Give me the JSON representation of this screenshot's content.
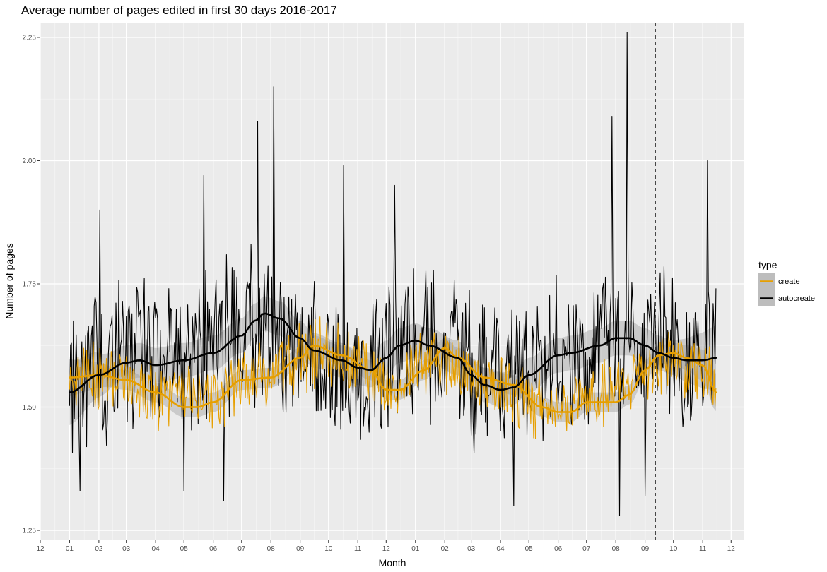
{
  "chart_data": {
    "type": "line",
    "title": "Average number of pages edited in first 30 days 2016-2017",
    "xlabel": "Month",
    "ylabel": "Number of pages",
    "x_range": [
      "2015-12-01",
      "2017-12-15"
    ],
    "ylim": [
      1.23,
      2.28
    ],
    "y_ticks": [
      1.25,
      1.5,
      1.75,
      2.0,
      2.25
    ],
    "y_tick_labels": [
      "1.25",
      "1.50",
      "1.75",
      "2.00",
      "2.25"
    ],
    "x_ticks": [
      "2015-12-01",
      "2016-01-01",
      "2016-02-01",
      "2016-03-01",
      "2016-04-01",
      "2016-05-01",
      "2016-06-01",
      "2016-07-01",
      "2016-08-01",
      "2016-09-01",
      "2016-10-01",
      "2016-11-01",
      "2016-12-01",
      "2017-01-01",
      "2017-02-01",
      "2017-03-01",
      "2017-04-01",
      "2017-05-01",
      "2017-06-01",
      "2017-07-01",
      "2017-08-01",
      "2017-09-01",
      "2017-10-01",
      "2017-11-01",
      "2017-12-01"
    ],
    "x_tick_labels": [
      "12",
      "01",
      "02",
      "03",
      "04",
      "05",
      "06",
      "07",
      "08",
      "09",
      "10",
      "11",
      "12",
      "01",
      "02",
      "03",
      "04",
      "05",
      "06",
      "07",
      "08",
      "09",
      "10",
      "11",
      "12"
    ],
    "grid": true,
    "legend": {
      "title": "type",
      "position": "right"
    },
    "vline": {
      "x": "2017-09-12",
      "style": "dashed"
    },
    "series": [
      {
        "name": "create",
        "color": "#E69F00",
        "raw_center": [
          [
            "2016-01-01",
            1.56
          ],
          [
            "2016-02-01",
            1.56
          ],
          [
            "2016-03-01",
            1.55
          ],
          [
            "2016-04-01",
            1.53
          ],
          [
            "2016-05-01",
            1.51
          ],
          [
            "2016-06-01",
            1.52
          ],
          [
            "2016-07-01",
            1.56
          ],
          [
            "2016-08-01",
            1.56
          ],
          [
            "2016-09-01",
            1.6
          ],
          [
            "2016-10-01",
            1.61
          ],
          [
            "2016-11-01",
            1.59
          ],
          [
            "2016-12-01",
            1.54
          ],
          [
            "2017-01-01",
            1.58
          ],
          [
            "2017-02-01",
            1.6
          ],
          [
            "2017-03-01",
            1.56
          ],
          [
            "2017-04-01",
            1.54
          ],
          [
            "2017-05-01",
            1.51
          ],
          [
            "2017-06-01",
            1.49
          ],
          [
            "2017-07-01",
            1.51
          ],
          [
            "2017-08-01",
            1.53
          ],
          [
            "2017-09-01",
            1.58
          ],
          [
            "2017-10-01",
            1.6
          ],
          [
            "2017-11-01",
            1.57
          ],
          [
            "2017-11-15",
            1.53
          ]
        ],
        "raw_amplitude": 0.07,
        "smooth": [
          [
            "2016-01-01",
            1.56
          ],
          [
            "2016-02-01",
            1.565
          ],
          [
            "2016-03-01",
            1.555
          ],
          [
            "2016-04-01",
            1.53
          ],
          [
            "2016-05-01",
            1.5
          ],
          [
            "2016-05-15",
            1.5
          ],
          [
            "2016-06-01",
            1.51
          ],
          [
            "2016-07-01",
            1.555
          ],
          [
            "2016-08-01",
            1.56
          ],
          [
            "2016-09-01",
            1.6
          ],
          [
            "2016-09-15",
            1.625
          ],
          [
            "2016-10-15",
            1.605
          ],
          [
            "2016-11-15",
            1.575
          ],
          [
            "2016-12-01",
            1.535
          ],
          [
            "2016-12-15",
            1.535
          ],
          [
            "2017-01-10",
            1.575
          ],
          [
            "2017-02-01",
            1.62
          ],
          [
            "2017-02-15",
            1.6
          ],
          [
            "2017-03-15",
            1.56
          ],
          [
            "2017-04-15",
            1.545
          ],
          [
            "2017-05-15",
            1.5
          ],
          [
            "2017-06-01",
            1.49
          ],
          [
            "2017-06-15",
            1.49
          ],
          [
            "2017-07-01",
            1.51
          ],
          [
            "2017-07-15",
            1.51
          ],
          [
            "2017-08-01",
            1.51
          ],
          [
            "2017-08-15",
            1.525
          ],
          [
            "2017-09-01",
            1.575
          ],
          [
            "2017-09-15",
            1.605
          ],
          [
            "2017-10-01",
            1.61
          ],
          [
            "2017-10-15",
            1.6
          ],
          [
            "2017-11-01",
            1.585
          ],
          [
            "2017-11-15",
            1.53
          ]
        ],
        "band": 0.02
      },
      {
        "name": "autocreate",
        "color": "#000000",
        "raw_center": [
          [
            "2016-01-01",
            1.55
          ],
          [
            "2016-02-01",
            1.58
          ],
          [
            "2016-03-01",
            1.6
          ],
          [
            "2016-04-01",
            1.59
          ],
          [
            "2016-05-01",
            1.6
          ],
          [
            "2016-06-01",
            1.62
          ],
          [
            "2016-07-01",
            1.65
          ],
          [
            "2016-08-01",
            1.66
          ],
          [
            "2016-09-01",
            1.62
          ],
          [
            "2016-10-01",
            1.6
          ],
          [
            "2016-11-01",
            1.58
          ],
          [
            "2016-12-01",
            1.61
          ],
          [
            "2017-01-01",
            1.63
          ],
          [
            "2017-02-01",
            1.62
          ],
          [
            "2017-03-01",
            1.57
          ],
          [
            "2017-04-01",
            1.54
          ],
          [
            "2017-05-01",
            1.56
          ],
          [
            "2017-06-01",
            1.6
          ],
          [
            "2017-07-01",
            1.61
          ],
          [
            "2017-08-01",
            1.64
          ],
          [
            "2017-09-01",
            1.62
          ],
          [
            "2017-10-01",
            1.6
          ],
          [
            "2017-11-01",
            1.59
          ],
          [
            "2017-11-15",
            1.6
          ]
        ],
        "raw_amplitude": 0.16,
        "raw_spikes": [
          [
            "2016-01-12",
            1.33
          ],
          [
            "2016-02-02",
            1.9
          ],
          [
            "2016-05-01",
            1.33
          ],
          [
            "2016-05-22",
            1.97
          ],
          [
            "2016-06-12",
            1.31
          ],
          [
            "2016-07-18",
            2.08
          ],
          [
            "2016-08-04",
            2.15
          ],
          [
            "2016-10-17",
            1.99
          ],
          [
            "2016-12-10",
            1.95
          ],
          [
            "2017-04-15",
            1.3
          ],
          [
            "2017-07-28",
            2.09
          ],
          [
            "2017-08-13",
            2.26
          ],
          [
            "2017-08-05",
            1.28
          ],
          [
            "2017-09-01",
            1.32
          ],
          [
            "2017-11-06",
            2.0
          ]
        ],
        "smooth": [
          [
            "2016-01-01",
            1.53
          ],
          [
            "2016-02-01",
            1.565
          ],
          [
            "2016-03-01",
            1.59
          ],
          [
            "2016-03-15",
            1.595
          ],
          [
            "2016-04-01",
            1.585
          ],
          [
            "2016-05-01",
            1.595
          ],
          [
            "2016-06-01",
            1.61
          ],
          [
            "2016-07-01",
            1.645
          ],
          [
            "2016-07-15",
            1.675
          ],
          [
            "2016-07-25",
            1.69
          ],
          [
            "2016-08-10",
            1.68
          ],
          [
            "2016-09-01",
            1.64
          ],
          [
            "2016-09-15",
            1.615
          ],
          [
            "2016-10-15",
            1.595
          ],
          [
            "2016-11-01",
            1.58
          ],
          [
            "2016-11-15",
            1.575
          ],
          [
            "2016-12-01",
            1.6
          ],
          [
            "2016-12-15",
            1.625
          ],
          [
            "2017-01-01",
            1.635
          ],
          [
            "2017-01-15",
            1.625
          ],
          [
            "2017-02-15",
            1.6
          ],
          [
            "2017-03-01",
            1.565
          ],
          [
            "2017-03-15",
            1.545
          ],
          [
            "2017-04-01",
            1.535
          ],
          [
            "2017-04-15",
            1.54
          ],
          [
            "2017-05-01",
            1.565
          ],
          [
            "2017-06-01",
            1.605
          ],
          [
            "2017-06-15",
            1.61
          ],
          [
            "2017-07-15",
            1.625
          ],
          [
            "2017-08-01",
            1.64
          ],
          [
            "2017-08-15",
            1.64
          ],
          [
            "2017-09-01",
            1.625
          ],
          [
            "2017-09-15",
            1.61
          ],
          [
            "2017-10-01",
            1.6
          ],
          [
            "2017-10-15",
            1.595
          ],
          [
            "2017-11-01",
            1.595
          ],
          [
            "2017-11-15",
            1.6
          ]
        ],
        "band": 0.035
      }
    ]
  }
}
